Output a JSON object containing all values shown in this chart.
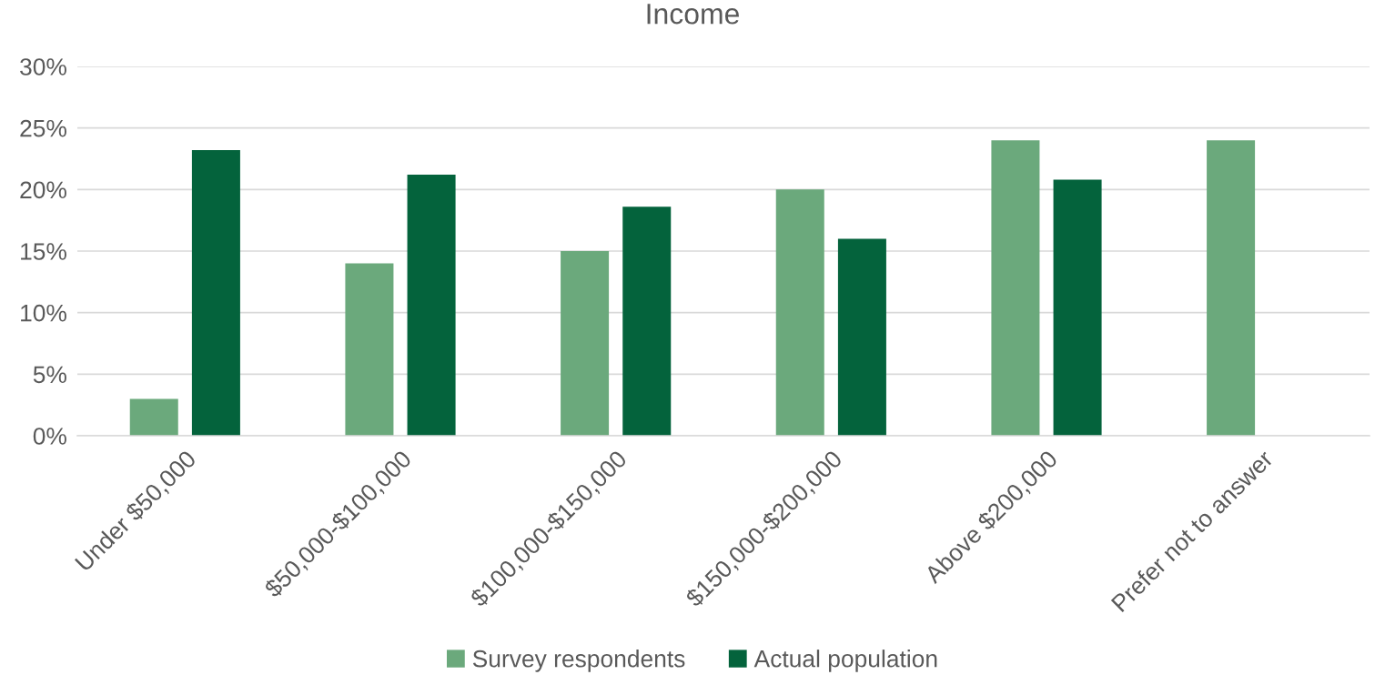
{
  "chart_data": {
    "type": "bar",
    "title": "Income",
    "categories": [
      "Under $50,000",
      "$50,000-$100,000",
      "$100,000-$150,000",
      "$150,000-$200,000",
      "Above $200,000",
      "Prefer not to answer"
    ],
    "series": [
      {
        "name": "Survey respondents",
        "color": "#6ba97c",
        "values": [
          3.0,
          14.0,
          15.0,
          20.0,
          24.0,
          24.0
        ]
      },
      {
        "name": "Actual population",
        "color": "#04633c",
        "values": [
          23.2,
          21.2,
          18.6,
          16.0,
          20.8,
          null
        ]
      }
    ],
    "ylim": [
      0,
      30
    ],
    "yticks": [
      {
        "value": 0,
        "label": "0%"
      },
      {
        "value": 5,
        "label": "5%"
      },
      {
        "value": 10,
        "label": "10%"
      },
      {
        "value": 15,
        "label": "15%"
      },
      {
        "value": 20,
        "label": "20%"
      },
      {
        "value": 25,
        "label": "25%"
      },
      {
        "value": 30,
        "label": "30%"
      }
    ],
    "grid": "y",
    "legend": "bottom"
  }
}
